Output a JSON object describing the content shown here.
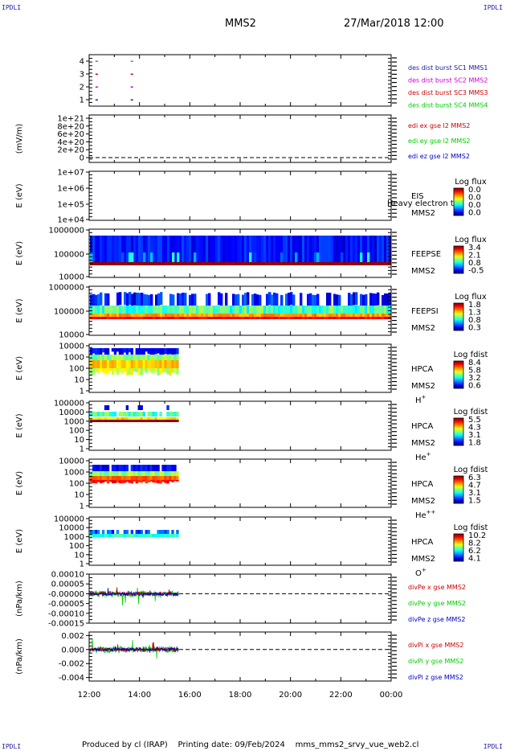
{
  "corners": {
    "tl": "IPDLI",
    "tr": "IPDLI",
    "bl": "IPDLI",
    "br": "IPDLI"
  },
  "header": {
    "spacecraft": "MMS2",
    "datetime": "27/Mar/2018 12:00"
  },
  "footer": {
    "credit": "Produced by cl (IRAP)",
    "printing": "Printing date: 09/Feb/2024",
    "file": "mms_mms2_srvy_vue_web2.cl"
  },
  "x_axis": {
    "ticks": [
      "12:00",
      "14:00",
      "16:00",
      "18:00",
      "20:00",
      "22:00",
      "00:00"
    ],
    "range_hours": [
      12,
      24
    ]
  },
  "colors": {
    "magenta": "#cc00cc",
    "red": "#cc0000",
    "green": "#00cc00",
    "blue": "#0000cc",
    "dark_blue": "#1a1aa6"
  },
  "chart_data": [
    {
      "type": "scatter",
      "panel": "burst-status",
      "yticks": [
        "4",
        "3",
        "2",
        "1"
      ],
      "legend": [
        {
          "text": "des dist burst SC1 MMS1",
          "color": "#1a1aa6"
        },
        {
          "text": "des dist burst SC2 MMS2",
          "color": "#cc00cc"
        },
        {
          "text": "des dist burst SC3 MMS3",
          "color": "#cc0000"
        },
        {
          "text": "des dist burst SC4 MMS4",
          "color": "#00cc00"
        }
      ],
      "marks_hours": [
        12.25,
        13.65
      ]
    },
    {
      "type": "line",
      "panel": "edi-efield",
      "ylabel": "(mV/m)",
      "yticks": [
        "1e+21",
        "8e+20",
        "6e+20",
        "4e+20",
        "2e+20",
        "0"
      ],
      "legend": [
        {
          "text": "edi ex gse l2 MMS2",
          "color": "#cc0000"
        },
        {
          "text": "edi ey gse l2 MMS2",
          "color": "#00cc00"
        },
        {
          "text": "edi ez gse l2 MMS2",
          "color": "#0000cc"
        }
      ]
    },
    {
      "type": "heatmap",
      "panel": "eis",
      "ylabel": "E (eV)",
      "yticks": [
        "1e+07",
        "1e+06",
        "1e+05",
        "1e+04"
      ],
      "instrument": "EIS",
      "sc": "MMS2",
      "overlay": "Heavy electron t",
      "cbar_title": "Log flux",
      "cbar_ticks": [
        "0.0",
        "0.0",
        "0.0",
        "0.0"
      ]
    },
    {
      "type": "heatmap",
      "panel": "feepse",
      "ylabel": "E (eV)",
      "yticks": [
        "1000000",
        "100000",
        "10000"
      ],
      "instrument": "FEEPSE",
      "sc": "MMS2",
      "cbar_title": "Log flux",
      "cbar_ticks": [
        "3.4",
        "2.1",
        "0.8",
        "-0.5"
      ],
      "time_hours": [
        12.0,
        24.0
      ]
    },
    {
      "type": "heatmap",
      "panel": "feepsi",
      "ylabel": "E (eV)",
      "yticks": [
        "1000000",
        "100000",
        "10000"
      ],
      "instrument": "FEEPSI",
      "sc": "MMS2",
      "cbar_title": "Log flux",
      "cbar_ticks": [
        "1.8",
        "1.3",
        "0.8",
        "0.3"
      ],
      "time_hours": [
        12.0,
        24.0
      ]
    },
    {
      "type": "heatmap",
      "panel": "hpca-h",
      "ylabel": "E (eV)",
      "yticks": [
        "10000",
        "1000",
        "100",
        "10",
        "1"
      ],
      "instrument": "HPCA",
      "sc": "MMS2",
      "species": "H",
      "charge": "+",
      "cbar_title": "Log fdist",
      "cbar_ticks": [
        "8.4",
        "5.8",
        "3.2",
        "0.6"
      ],
      "time_hours": [
        12.0,
        15.55
      ]
    },
    {
      "type": "heatmap",
      "panel": "hpca-he",
      "ylabel": "E (eV)",
      "yticks": [
        "100000",
        "10000",
        "1000",
        "100",
        "10",
        "1"
      ],
      "instrument": "HPCA",
      "sc": "MMS2",
      "species": "He",
      "charge": "+",
      "cbar_title": "Log fdist",
      "cbar_ticks": [
        "5.5",
        "4.3",
        "3.1",
        "1.8"
      ],
      "time_hours": [
        12.0,
        15.55
      ]
    },
    {
      "type": "heatmap",
      "panel": "hpca-hepp",
      "ylabel": "E (eV)",
      "yticks": [
        "10000",
        "1000",
        "100",
        "10",
        "1"
      ],
      "instrument": "HPCA",
      "sc": "MMS2",
      "species": "He",
      "charge": "++",
      "cbar_title": "Log fdist",
      "cbar_ticks": [
        "6.3",
        "4.7",
        "3.1",
        "1.5"
      ],
      "time_hours": [
        12.0,
        15.55
      ]
    },
    {
      "type": "heatmap",
      "panel": "hpca-o",
      "ylabel": "E (eV)",
      "yticks": [
        "100000",
        "10000",
        "1000",
        "100",
        "10",
        "1"
      ],
      "instrument": "HPCA",
      "sc": "MMS2",
      "species": "O",
      "charge": "+",
      "cbar_title": "Log fdist",
      "cbar_ticks": [
        "10.2",
        "8.2",
        "6.2",
        "4.1"
      ],
      "time_hours": [
        12.0,
        15.55
      ]
    },
    {
      "type": "line",
      "panel": "divpe",
      "ylabel": "(nPa/km)",
      "yticks": [
        "0.00010",
        "0.00005",
        "-0.00000",
        "-0.00005",
        "-0.00010",
        "-0.00015"
      ],
      "ylim": [
        -0.00015,
        0.0001
      ],
      "legend": [
        {
          "text": "divPe x gse MMS2",
          "color": "#cc0000"
        },
        {
          "text": "divPe y gse MMS2",
          "color": "#00cc00"
        },
        {
          "text": "divPe z gse MMS2",
          "color": "#0000cc"
        }
      ],
      "time_hours": [
        12.0,
        15.55
      ]
    },
    {
      "type": "line",
      "panel": "divpi",
      "ylabel": "(nPa/km)",
      "yticks": [
        "0.002",
        "0.000",
        "-0.002",
        "-0.004"
      ],
      "ylim": [
        -0.0045,
        0.0025
      ],
      "legend": [
        {
          "text": "divPi x gse MMS2",
          "color": "#cc0000"
        },
        {
          "text": "divPi y gse MMS2",
          "color": "#00cc00"
        },
        {
          "text": "divPi z gse MMS2",
          "color": "#0000cc"
        }
      ],
      "time_hours": [
        12.0,
        15.55
      ]
    }
  ]
}
